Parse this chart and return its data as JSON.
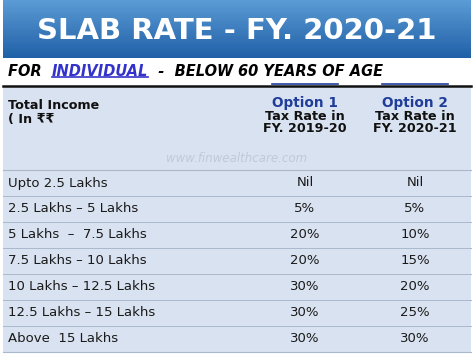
{
  "title": "SLAB RATE - FY. 2020-21",
  "title_bg_top": "#5b9bd5",
  "title_bg_mid": "#2e75b6",
  "title_bg_bot": "#1f5fa6",
  "title_color": "#ffffff",
  "subtitle_black": "#000000",
  "subtitle_blue": "#3333cc",
  "watermark": "www.finwealthcare.com",
  "header_col2_opt": "Option 1",
  "header_col2_sub1": "Tax Rate in",
  "header_col2_sub2": "FY. 2019-20",
  "header_col3_opt": "Option 2",
  "header_col3_sub1": "Tax Rate in",
  "header_col3_sub2": "FY. 2020-21",
  "header_col1_l1": "Total Income",
  "header_col1_l2": "( In ₹₹",
  "rows": [
    [
      "Upto 2.5 Lakhs",
      "Nil",
      "Nil"
    ],
    [
      "2.5 Lakhs – 5 Lakhs",
      "5%",
      "5%"
    ],
    [
      "5 Lakhs  –  7.5 Lakhs",
      "20%",
      "10%"
    ],
    [
      "7.5 Lakhs – 10 Lakhs",
      "20%",
      "15%"
    ],
    [
      "10 Lakhs – 12.5 Lakhs",
      "30%",
      "20%"
    ],
    [
      "12.5 Lakhs – 15 Lakhs",
      "30%",
      "25%"
    ],
    [
      "Above  15 Lakhs",
      "30%",
      "30%"
    ]
  ],
  "table_bg": "#d9e2f0",
  "bg_color": "#ffffff",
  "opt_color": "#1f3d99",
  "row_text_color": "#1a1a1a",
  "divider_color": "#aab8cc"
}
